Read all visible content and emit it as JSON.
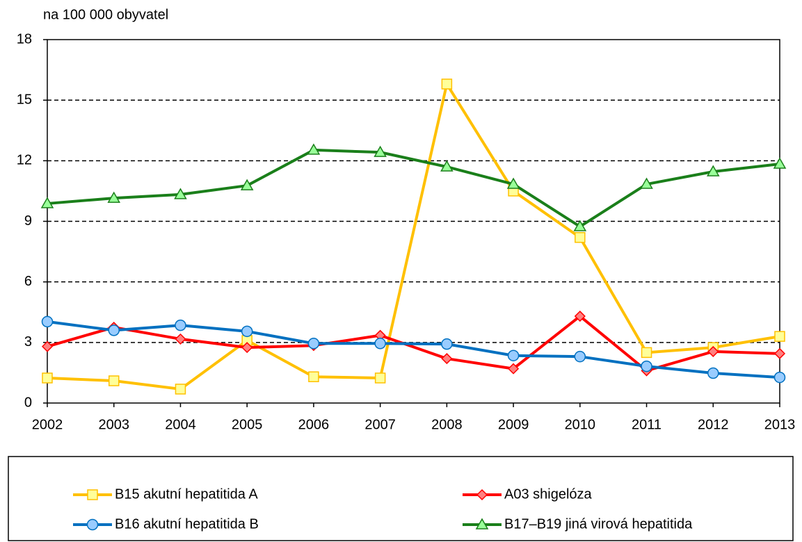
{
  "chart_data": {
    "type": "line",
    "ylabel": "na 100 000 obyvatel",
    "categories": [
      "2002",
      "2003",
      "2004",
      "2005",
      "2006",
      "2007",
      "2008",
      "2009",
      "2010",
      "2011",
      "2012",
      "2013"
    ],
    "ylim": [
      0,
      18
    ],
    "yticks": [
      0,
      3,
      6,
      9,
      12,
      15,
      18
    ],
    "grid": true,
    "series": [
      {
        "name": "B15 akutní hepatitida A",
        "color": "#ffc000",
        "marker": "square",
        "marker_fill": "#ffff99",
        "values": [
          1.24,
          1.1,
          0.69,
          3.1,
          1.3,
          1.24,
          15.8,
          10.5,
          8.2,
          2.5,
          2.75,
          3.3
        ]
      },
      {
        "name": "A03 shigelóza",
        "color": "#ff0000",
        "marker": "diamond",
        "marker_fill": "#ff8080",
        "values": [
          2.8,
          3.75,
          3.17,
          2.75,
          2.85,
          3.35,
          2.2,
          1.7,
          4.3,
          1.6,
          2.55,
          2.45
        ]
      },
      {
        "name": "B16 akutní hepatitida B",
        "color": "#0070c0",
        "marker": "circle",
        "marker_fill": "#99ccff",
        "values": [
          4.03,
          3.6,
          3.85,
          3.55,
          2.95,
          2.95,
          2.92,
          2.35,
          2.3,
          1.82,
          1.48,
          1.27
        ]
      },
      {
        "name": "B17–B19 jiná virová hepatitida",
        "color": "#1a7f1a",
        "marker": "triangle",
        "marker_fill": "#99ff99",
        "values": [
          9.88,
          10.15,
          10.33,
          10.77,
          12.53,
          12.42,
          11.7,
          10.84,
          8.74,
          10.84,
          11.46,
          11.84
        ]
      }
    ]
  }
}
